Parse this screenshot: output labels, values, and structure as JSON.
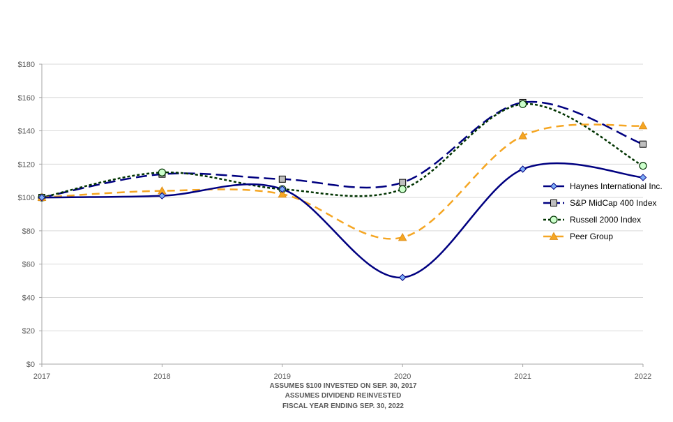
{
  "chart_data": {
    "type": "line",
    "x": [
      "2017",
      "2018",
      "2019",
      "2020",
      "2021",
      "2022"
    ],
    "series": [
      {
        "name": "Haynes International Inc.",
        "values": [
          100,
          101,
          105,
          52,
          117,
          112
        ],
        "color": "#000080",
        "dash": "solid",
        "marker": "diamond",
        "marker_fill": "#7eaef8"
      },
      {
        "name": "S&P MidCap 400 Index",
        "values": [
          100,
          114,
          111,
          109,
          157,
          132
        ],
        "color": "#000080",
        "dash": "long-dash",
        "marker": "square",
        "marker_fill": "#bfbfbf"
      },
      {
        "name": "Russell 2000 Index",
        "values": [
          100,
          115,
          105,
          105,
          156,
          119
        ],
        "color": "#003300",
        "dash": "dotted",
        "marker": "circle",
        "marker_fill": "#ccffcc"
      },
      {
        "name": "Peer Group",
        "values": [
          100,
          104,
          102,
          76,
          137,
          143
        ],
        "color": "#f5a623",
        "dash": "dash",
        "marker": "triangle",
        "marker_fill": "#f5a623"
      }
    ],
    "y_ticks": [
      "$0",
      "$20",
      "$40",
      "$60",
      "$80",
      "$100",
      "$120",
      "$140",
      "$160",
      "$180"
    ],
    "ylim": [
      0,
      180
    ],
    "y_tick_step": 20,
    "grid": true,
    "legend_position": "right",
    "notes": [
      "ASSUMES $100 INVESTED ON SEP. 30, 2017",
      "ASSUMES DIVIDEND REINVESTED",
      "FISCAL YEAR ENDING SEP. 30, 2022"
    ]
  }
}
